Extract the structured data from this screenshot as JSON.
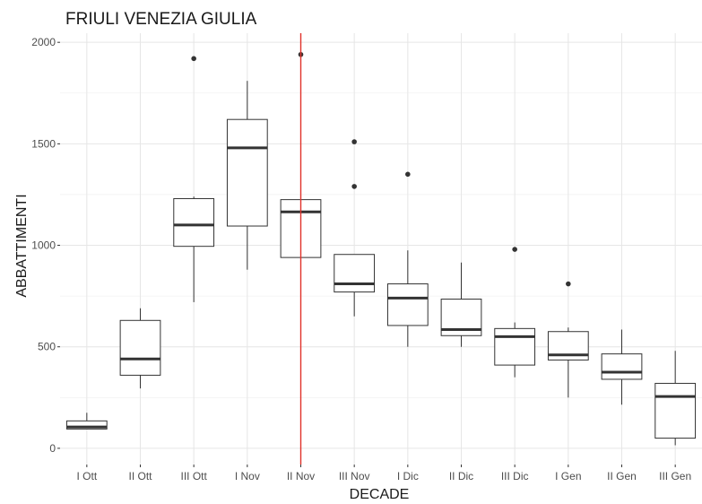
{
  "chart_data": {
    "type": "boxplot",
    "title": "FRIULI VENEZIA GIULIA",
    "xlabel": "DECADE",
    "ylabel": "ABBATTIMENTI",
    "categories": [
      "I Ott",
      "II Ott",
      "III Ott",
      "I Nov",
      "II Nov",
      "III Nov",
      "I Dic",
      "II Dic",
      "III Dic",
      "I Gen",
      "II Gen",
      "III Gen"
    ],
    "yticks": [
      0,
      500,
      1000,
      1500,
      2000
    ],
    "ylim": [
      -80,
      2045
    ],
    "grid": true,
    "boxes": [
      {
        "category": "I Ott",
        "min": 95,
        "q1": 95,
        "median": 105,
        "q3": 135,
        "max": 175,
        "outliers": []
      },
      {
        "category": "II Ott",
        "min": 295,
        "q1": 360,
        "median": 440,
        "q3": 630,
        "max": 690,
        "outliers": []
      },
      {
        "category": "III Ott",
        "min": 720,
        "q1": 995,
        "median": 1100,
        "q3": 1230,
        "max": 1240,
        "outliers": [
          1920
        ]
      },
      {
        "category": "I Nov",
        "min": 880,
        "q1": 1095,
        "median": 1480,
        "q3": 1620,
        "max": 1810,
        "outliers": []
      },
      {
        "category": "II Nov",
        "min": 940,
        "q1": 940,
        "median": 1165,
        "q3": 1225,
        "max": 1225,
        "outliers": [
          1940
        ]
      },
      {
        "category": "III Nov",
        "min": 650,
        "q1": 770,
        "median": 810,
        "q3": 955,
        "max": 955,
        "outliers": [
          1290,
          1510
        ]
      },
      {
        "category": "I Dic",
        "min": 500,
        "q1": 605,
        "median": 740,
        "q3": 810,
        "max": 975,
        "outliers": [
          1350
        ]
      },
      {
        "category": "II Dic",
        "min": 500,
        "q1": 555,
        "median": 585,
        "q3": 735,
        "max": 915,
        "outliers": []
      },
      {
        "category": "III Dic",
        "min": 350,
        "q1": 410,
        "median": 550,
        "q3": 590,
        "max": 620,
        "outliers": [
          980
        ]
      },
      {
        "category": "I Gen",
        "min": 250,
        "q1": 435,
        "median": 460,
        "q3": 575,
        "max": 595,
        "outliers": [
          810
        ]
      },
      {
        "category": "II Gen",
        "min": 215,
        "q1": 340,
        "median": 375,
        "q3": 465,
        "max": 585,
        "outliers": []
      },
      {
        "category": "III Gen",
        "min": 15,
        "q1": 50,
        "median": 255,
        "q3": 320,
        "max": 480,
        "outliers": []
      }
    ],
    "reference_line": {
      "category": "II Nov",
      "color": "#e0312a"
    },
    "colors": {
      "box_stroke": "#333333",
      "outlier": "#333333",
      "grid": "#e6e6e6",
      "reference": "#e0312a"
    }
  }
}
